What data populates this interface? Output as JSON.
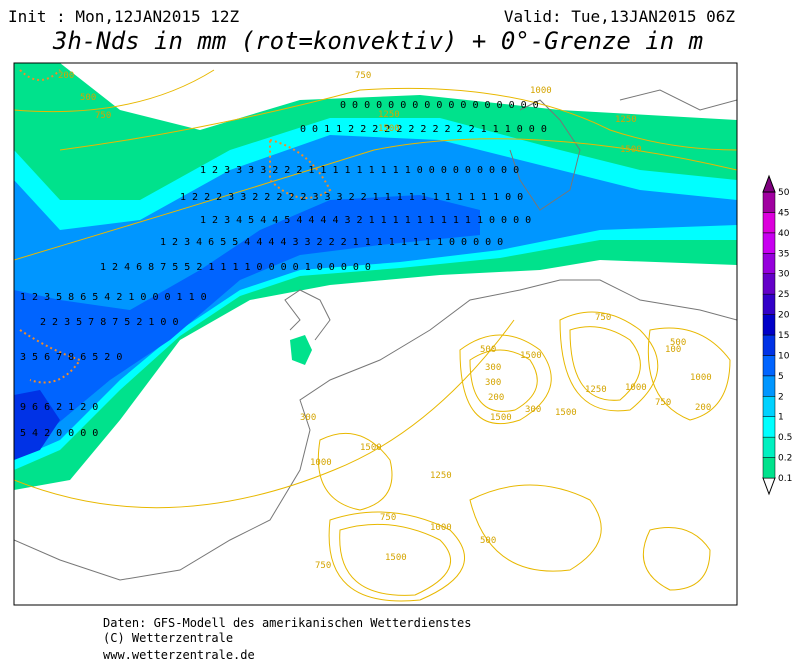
{
  "header": {
    "init": "Init : Mon,12JAN2015 12Z",
    "valid": "Valid: Tue,13JAN2015 06Z",
    "title": "3h-Nds in mm (rot=konvektiv) + 0°-Grenze in m"
  },
  "colorbar": {
    "levels": [
      0.1,
      0.2,
      0.5,
      1,
      2,
      5,
      10,
      15,
      20,
      25,
      30,
      35,
      40,
      45,
      50
    ],
    "colors": [
      "#00e28c",
      "#00f0c0",
      "#00ffff",
      "#00d2ff",
      "#0096ff",
      "#0064ff",
      "#0032e6",
      "#0000c8",
      "#3200c8",
      "#6400c8",
      "#9600dc",
      "#c800f0",
      "#dc00dc",
      "#a000a0",
      "#800080"
    ]
  },
  "precip_rows": [
    "0 0 0 0 0 0 0 0 0 0 0 0 0 0 0 0 0",
    "0 0 1 1 2 2 2 2 2 2 2 2 2 2 2 1 1 1 0 0 0",
    "1 2 3 3 3 3 2 2 2 1 1 1 1 1 1 1 1 1 0 0 0 0 0 0 0 0 0",
    "1 2 2 2 3 3 2 2 2 2 2 3 3 3 2 2 1 1 1 1 1 1 1 1 1 1 1 0 0",
    "1 2 3 4 5 4 4 5 4 4 4 4 3 2 1 1 1 1 1 1 1 1 1 1 0 0 0 0",
    "1 2 3 4 6 5 5 4 4 4 4 3 3 2 2 2 1 1 1 1 1 1 1 1 0 0 0 0 0",
    "1 2 4 6 8 7 5 5 2 1 1 1 1 0 0 0 0 1 0 0 0 0 0",
    "1 2 3 5 8 6 5 4 2 1 0 0 0 1 1 0",
    "2 2 3 5 7 8 7 5 2 1 0 0",
    "3 5 6 7 8 6 5 2 0",
    "9 6 6 2 1 2 0",
    "5 4 2 0 0 0 0"
  ],
  "contour_labels": [
    "200",
    "500",
    "750",
    "750",
    "1250",
    "1500",
    "1000",
    "1250",
    "1500",
    "1500",
    "300",
    "300",
    "200",
    "1500",
    "300",
    "750",
    "1000",
    "1500",
    "1250",
    "500",
    "750",
    "1000",
    "500",
    "300",
    "1000",
    "100",
    "200",
    "1250",
    "1500",
    "750",
    "1000",
    "500",
    "750",
    "1500"
  ],
  "footer": {
    "source": "Daten: GFS-Modell des amerikanischen Wetterdienstes",
    "copyright": "(C) Wetterzentrale",
    "url": "www.wetterzentrale.de"
  }
}
